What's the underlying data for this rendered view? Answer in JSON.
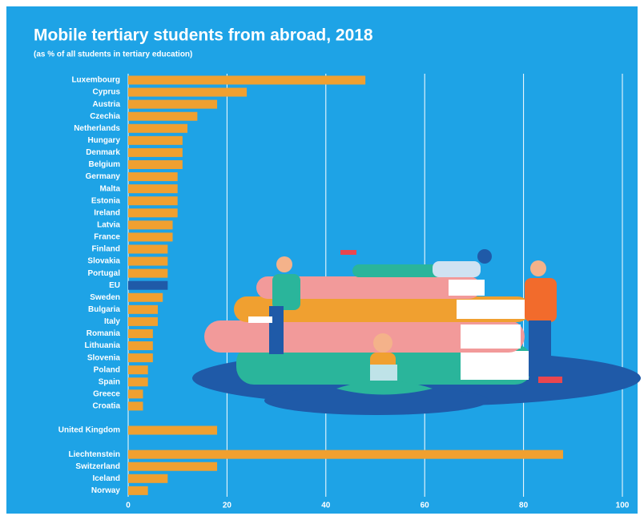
{
  "chart_data": {
    "type": "hbar",
    "title": "Mobile tertiary students from abroad, 2018",
    "subtitle": "(as % of all students in tertiary education)",
    "categories": [
      "Luxembourg",
      "Cyprus",
      "Austria",
      "Czechia",
      "Netherlands",
      "Hungary",
      "Denmark",
      "Belgium",
      "Germany",
      "Malta",
      "Estonia",
      "Ireland",
      "Latvia",
      "France",
      "Finland",
      "Slovakia",
      "Portugal",
      "EU",
      "Sweden",
      "Bulgaria",
      "Italy",
      "Romania",
      "Lithuania",
      "Slovenia",
      "Poland",
      "Spain",
      "Greece",
      "Croatia",
      null,
      "United Kingdom",
      null,
      "Liechtenstein",
      "Switzerland",
      "Iceland",
      "Norway"
    ],
    "values": [
      48,
      24,
      18,
      14,
      12,
      11,
      11,
      11,
      10,
      10,
      10,
      10,
      9,
      9,
      8,
      8,
      8,
      8,
      7,
      6,
      6,
      5,
      5,
      5,
      4,
      4,
      3,
      3,
      null,
      18,
      null,
      88,
      18,
      8,
      4
    ],
    "colors": [
      "#f0a030",
      "#f0a030",
      "#f0a030",
      "#f0a030",
      "#f0a030",
      "#f0a030",
      "#f0a030",
      "#f0a030",
      "#f0a030",
      "#f0a030",
      "#f0a030",
      "#f0a030",
      "#f0a030",
      "#f0a030",
      "#f0a030",
      "#f0a030",
      "#f0a030",
      "#1f5aa8",
      "#f0a030",
      "#f0a030",
      "#f0a030",
      "#f0a030",
      "#f0a030",
      "#f0a030",
      "#f0a030",
      "#f0a030",
      "#f0a030",
      "#f0a030",
      null,
      "#f0a030",
      null,
      "#f0a030",
      "#f0a030",
      "#f0a030",
      "#f0a030"
    ],
    "xlim": [
      0,
      100
    ],
    "xticks": [
      0,
      20,
      40,
      60,
      80,
      100
    ],
    "grid": true
  }
}
